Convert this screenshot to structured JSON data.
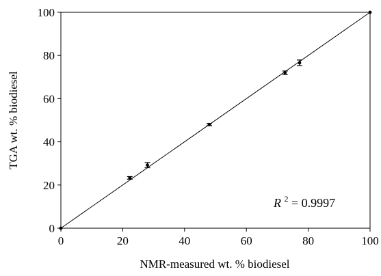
{
  "chart_data": {
    "type": "scatter",
    "xlabel": "NMR-measured wt. % biodiesel",
    "ylabel": "TGA wt. % biodiesel",
    "xlim": [
      0,
      100
    ],
    "ylim": [
      0,
      100
    ],
    "x_ticks": [
      "0",
      "20",
      "40",
      "60",
      "80",
      "100"
    ],
    "y_ticks": [
      "0",
      "20",
      "40",
      "60",
      "80",
      "100"
    ],
    "grid": false,
    "legend": "none",
    "series": [
      {
        "points": [
          {
            "x": 0,
            "y": 0
          },
          {
            "x": 22.3,
            "y": 23.3,
            "err": 0.6
          },
          {
            "x": 28.0,
            "y": 29.2,
            "err": 1.2
          },
          {
            "x": 48.0,
            "y": 48.0,
            "err": 0.5
          },
          {
            "x": 72.5,
            "y": 72.0,
            "err": 0.8
          },
          {
            "x": 77.2,
            "y": 76.6,
            "err": 1.3
          },
          {
            "x": 100,
            "y": 100
          }
        ]
      }
    ],
    "fit_line": {
      "x": [
        0,
        100
      ],
      "y": [
        0,
        100
      ]
    },
    "annotation": {
      "r2_label": "R",
      "r2_sup": "2",
      "r2_value": " = 0.9997"
    }
  }
}
